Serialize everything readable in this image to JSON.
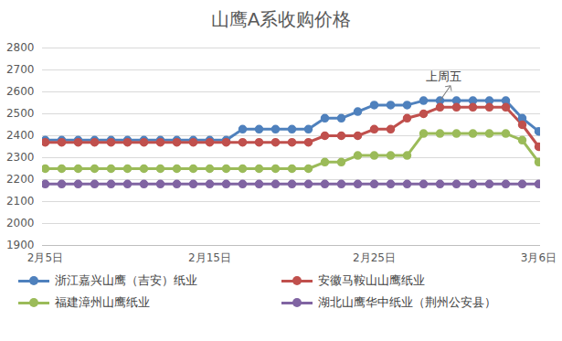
{
  "chart_data": {
    "type": "line",
    "title": "山鹰A系收购价格",
    "categories": [
      "2月5日",
      null,
      null,
      null,
      null,
      null,
      null,
      null,
      null,
      null,
      "2月15日",
      null,
      null,
      null,
      null,
      null,
      null,
      null,
      null,
      null,
      "2月25日",
      null,
      null,
      null,
      null,
      null,
      null,
      null,
      null,
      null,
      "3月6日"
    ],
    "series": [
      {
        "name": "浙江嘉兴山鹰（吉安）纸业",
        "color": "#4f81bd",
        "values": [
          2380,
          2380,
          2380,
          2380,
          2380,
          2380,
          2380,
          2380,
          2380,
          2380,
          2380,
          2380,
          2430,
          2430,
          2430,
          2430,
          2430,
          2480,
          2480,
          2510,
          2540,
          2540,
          2540,
          2560,
          2560,
          2560,
          2560,
          2560,
          2560,
          2480,
          2420
        ]
      },
      {
        "name": "安徽马鞍山山鹰纸业",
        "color": "#c0504d",
        "values": [
          2370,
          2370,
          2370,
          2370,
          2370,
          2370,
          2370,
          2370,
          2370,
          2370,
          2370,
          2370,
          2370,
          2370,
          2370,
          2370,
          2370,
          2400,
          2400,
          2400,
          2430,
          2430,
          2480,
          2500,
          2530,
          2530,
          2530,
          2530,
          2530,
          2450,
          2350
        ]
      },
      {
        "name": "福建漳州山鹰纸业",
        "color": "#9bbb59",
        "values": [
          2250,
          2250,
          2250,
          2250,
          2250,
          2250,
          2250,
          2250,
          2250,
          2250,
          2250,
          2250,
          2250,
          2250,
          2250,
          2250,
          2250,
          2280,
          2280,
          2310,
          2310,
          2310,
          2310,
          2410,
          2410,
          2410,
          2410,
          2410,
          2410,
          2380,
          2280
        ]
      },
      {
        "name": "湖北山鹰华中纸业（荆州公安县）",
        "color": "#8064a2",
        "values": [
          2180,
          2180,
          2180,
          2180,
          2180,
          2180,
          2180,
          2180,
          2180,
          2180,
          2180,
          2180,
          2180,
          2180,
          2180,
          2180,
          2180,
          2180,
          2180,
          2180,
          2180,
          2180,
          2180,
          2180,
          2180,
          2180,
          2180,
          2180,
          2180,
          2180,
          2180
        ]
      }
    ],
    "ylim": [
      1900,
      2800
    ],
    "yticks": [
      1900,
      2000,
      2100,
      2200,
      2300,
      2400,
      2500,
      2600,
      2700,
      2800
    ],
    "grid": true,
    "marker": "circle",
    "line_style": "solid",
    "legend": "bottom",
    "annotations": [
      {
        "text": "上周五",
        "index": 24,
        "value": 2560
      }
    ]
  }
}
